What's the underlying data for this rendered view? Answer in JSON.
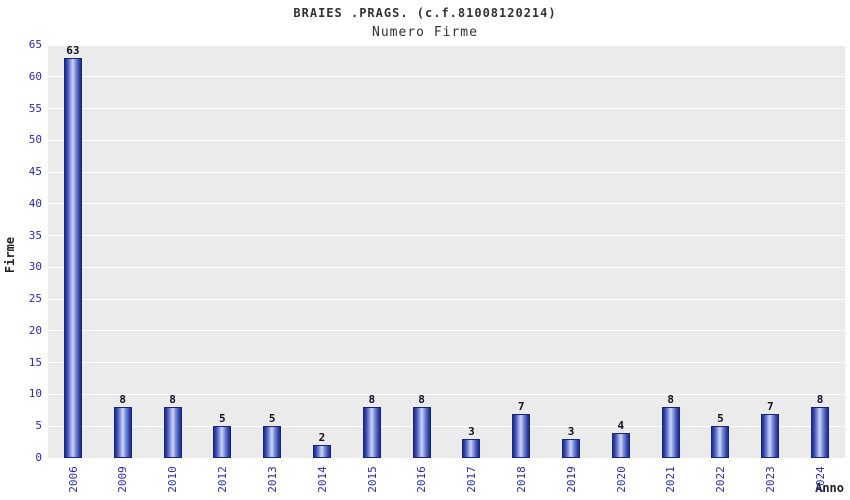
{
  "chart_data": {
    "type": "bar",
    "title": "BRAIES .PRAGS. (c.f.81008120214)",
    "subtitle": "Numero Firme",
    "xlabel": "Anno",
    "ylabel": "Firme",
    "categories": [
      "2006",
      "2009",
      "2010",
      "2012",
      "2013",
      "2014",
      "2015",
      "2016",
      "2017",
      "2018",
      "2019",
      "2020",
      "2021",
      "2022",
      "2023",
      "2024"
    ],
    "values": [
      63,
      8,
      8,
      5,
      5,
      2,
      8,
      8,
      3,
      7,
      3,
      4,
      8,
      5,
      7,
      8
    ],
    "ylim": [
      0,
      65
    ],
    "ytick_step": 5,
    "grid": true,
    "legend": "none",
    "colors": {
      "bar_dark": "#1f2d8e",
      "bar_light": "#cdd6f4",
      "bar_border": "#1a2470",
      "axis_tick_label": "#2b2ba0",
      "value_label": "#111122",
      "plot_background": "#ebebeb",
      "gridline": "#ffffff",
      "title_text": "#333333"
    }
  }
}
